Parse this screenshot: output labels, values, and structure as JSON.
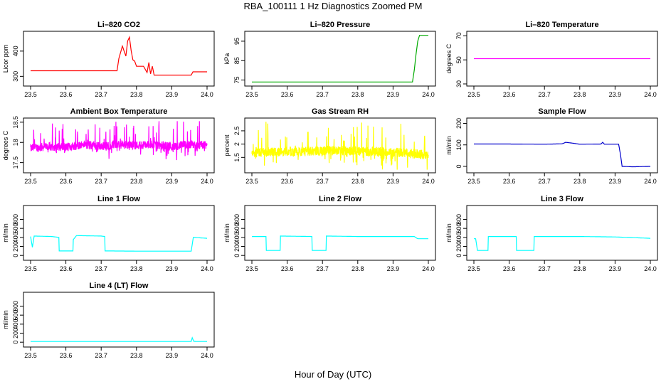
{
  "figure": {
    "title": "RBA_100111  1 Hz Diagnostics Zoomed PM",
    "xlabel": "Hour of Day (UTC)"
  },
  "chart_data": [
    {
      "type": "line",
      "title": "Li–820 CO2",
      "ylabel": "Licor ppm",
      "color": "#ff0000",
      "xlim": [
        23.5,
        24.0
      ],
      "ylim": [
        270,
        470
      ],
      "xticks": [
        "23.5",
        "23.6",
        "23.7",
        "23.8",
        "23.9",
        "24.0"
      ],
      "yticks": [
        300,
        400
      ],
      "series": [
        {
          "name": "CO2",
          "x": [
            23.5,
            23.55,
            23.6,
            23.65,
            23.7,
            23.745,
            23.75,
            23.76,
            23.77,
            23.775,
            23.78,
            23.785,
            23.79,
            23.795,
            23.8,
            23.82,
            23.83,
            23.835,
            23.84,
            23.845,
            23.85,
            23.86,
            23.9,
            23.955,
            23.96,
            23.97,
            23.99,
            24.0
          ],
          "values": [
            322,
            322,
            322,
            322,
            322,
            322,
            370,
            420,
            380,
            440,
            455,
            400,
            365,
            360,
            340,
            340,
            315,
            355,
            310,
            340,
            305,
            305,
            305,
            305,
            318,
            318,
            318,
            318
          ]
        }
      ]
    },
    {
      "type": "line",
      "title": "Li–820 Pressure",
      "ylabel": "kPa",
      "color": "#00aa00",
      "xlim": [
        23.5,
        24.0
      ],
      "ylim": [
        73,
        99
      ],
      "xticks": [
        "23.5",
        "23.6",
        "23.7",
        "23.8",
        "23.9",
        "24.0"
      ],
      "yticks": [
        75,
        85,
        95
      ],
      "series": [
        {
          "name": "Pressure",
          "x": [
            23.5,
            23.6,
            23.7,
            23.8,
            23.9,
            23.94,
            23.955,
            23.96,
            23.965,
            23.97,
            23.975,
            23.98,
            24.0
          ],
          "values": [
            74,
            74,
            74,
            74,
            74,
            74,
            74,
            80,
            88,
            95,
            98,
            98,
            98
          ]
        }
      ]
    },
    {
      "type": "line",
      "title": "Li–820 Temperature",
      "ylabel": "degrees C",
      "color": "#ff00ff",
      "xlim": [
        23.5,
        24.0
      ],
      "ylim": [
        30,
        72
      ],
      "xticks": [
        "23.5",
        "23.6",
        "23.7",
        "23.8",
        "23.9",
        "24.0"
      ],
      "yticks": [
        30,
        50,
        70
      ],
      "series": [
        {
          "name": "Temperature",
          "x": [
            23.5,
            24.0
          ],
          "values": [
            51,
            51
          ]
        }
      ]
    },
    {
      "type": "line",
      "title": "Ambient Box Temperature",
      "ylabel": "degrees C",
      "color": "#ff00ff",
      "xlim": [
        23.5,
        24.0
      ],
      "ylim": [
        17.3,
        18.55
      ],
      "xticks": [
        "23.5",
        "23.6",
        "23.7",
        "23.8",
        "23.9",
        "24.0"
      ],
      "yticks": [
        17.5,
        18.0,
        18.5
      ],
      "series": [
        {
          "name": "Ambient",
          "x": [
            23.5,
            23.55,
            23.6,
            23.65,
            23.7,
            23.75,
            23.8,
            23.85,
            23.9,
            23.95,
            24.0
          ],
          "values": [
            17.85,
            17.9,
            17.88,
            17.95,
            17.9,
            17.95,
            17.93,
            17.95,
            17.9,
            17.95,
            17.92
          ],
          "noise": 0.35
        }
      ]
    },
    {
      "type": "line",
      "title": "Gas Stream RH",
      "ylabel": "percent",
      "color": "#ffff00",
      "xlim": [
        23.5,
        24.0
      ],
      "ylim": [
        1.0,
        2.9
      ],
      "xticks": [
        "23.5",
        "23.6",
        "23.7",
        "23.8",
        "23.9",
        "24.0"
      ],
      "yticks": [
        1.5,
        2.0,
        2.5
      ],
      "series": [
        {
          "name": "RH",
          "x": [
            23.5,
            23.6,
            23.7,
            23.8,
            23.9,
            24.0
          ],
          "values": [
            1.7,
            1.7,
            1.75,
            1.75,
            1.7,
            1.6
          ],
          "noise": 0.6
        }
      ]
    },
    {
      "type": "line",
      "title": "Sample Flow",
      "ylabel": "ml/min",
      "color": "#0000cc",
      "xlim": [
        23.5,
        24.0
      ],
      "ylim": [
        -20,
        215
      ],
      "xticks": [
        "23.5",
        "23.6",
        "23.7",
        "23.8",
        "23.9",
        "24.0"
      ],
      "yticks": [
        0,
        100,
        200
      ],
      "series": [
        {
          "name": "Sample",
          "x": [
            23.5,
            23.6,
            23.7,
            23.75,
            23.76,
            23.78,
            23.8,
            23.86,
            23.865,
            23.87,
            23.91,
            23.915,
            23.92,
            23.95,
            24.0
          ],
          "values": [
            104,
            104,
            103,
            105,
            112,
            108,
            103,
            104,
            112,
            103,
            103,
            60,
            0,
            -2,
            0
          ]
        }
      ]
    },
    {
      "type": "line",
      "title": "Line 1 Flow",
      "ylabel": "ml/min",
      "color": "#00ffff",
      "xlim": [
        23.5,
        24.0
      ],
      "ylim": [
        -60,
        1060
      ],
      "xticks": [
        "23.5",
        "23.6",
        "23.7",
        "23.8",
        "23.9",
        "24.0"
      ],
      "yticks": [
        0,
        200,
        400,
        600,
        800
      ],
      "series": [
        {
          "name": "Line1",
          "x": [
            23.5,
            23.505,
            23.51,
            23.56,
            23.58,
            23.581,
            23.62,
            23.621,
            23.63,
            23.7,
            23.71,
            23.711,
            23.8,
            23.9,
            23.955,
            23.96,
            23.961,
            24.0
          ],
          "values": [
            420,
            180,
            430,
            420,
            400,
            100,
            100,
            350,
            440,
            430,
            420,
            100,
            95,
            95,
            95,
            350,
            400,
            380
          ]
        }
      ]
    },
    {
      "type": "line",
      "title": "Line 2 Flow",
      "ylabel": "ml/min",
      "color": "#00ffff",
      "xlim": [
        23.5,
        24.0
      ],
      "ylim": [
        -60,
        1060
      ],
      "xticks": [
        "23.5",
        "23.6",
        "23.7",
        "23.8",
        "23.9",
        "24.0"
      ],
      "yticks": [
        0,
        200,
        400,
        600,
        800
      ],
      "series": [
        {
          "name": "Line2",
          "x": [
            23.5,
            23.54,
            23.541,
            23.58,
            23.581,
            23.67,
            23.671,
            23.71,
            23.711,
            23.8,
            23.9,
            23.96,
            23.97,
            24.0
          ],
          "values": [
            420,
            420,
            110,
            110,
            430,
            420,
            110,
            110,
            430,
            420,
            420,
            420,
            370,
            370
          ]
        }
      ]
    },
    {
      "type": "line",
      "title": "Line 3 Flow",
      "ylabel": "ml/min",
      "color": "#00ffff",
      "xlim": [
        23.5,
        24.0
      ],
      "ylim": [
        -60,
        1060
      ],
      "xticks": [
        "23.5",
        "23.6",
        "23.7",
        "23.8",
        "23.9",
        "24.0"
      ],
      "yticks": [
        0,
        200,
        400,
        600,
        800
      ],
      "series": [
        {
          "name": "Line3",
          "x": [
            23.5,
            23.505,
            23.51,
            23.54,
            23.541,
            23.62,
            23.621,
            23.67,
            23.671,
            23.8,
            23.9,
            24.0
          ],
          "values": [
            370,
            370,
            110,
            110,
            420,
            420,
            110,
            110,
            420,
            420,
            410,
            380
          ]
        }
      ]
    },
    {
      "type": "line",
      "title": "Line 4 (LT) Flow",
      "ylabel": "ml/min",
      "color": "#00ffff",
      "xlim": [
        23.5,
        24.0
      ],
      "ylim": [
        -60,
        1060
      ],
      "xticks": [
        "23.5",
        "23.6",
        "23.7",
        "23.8",
        "23.9",
        "24.0"
      ],
      "yticks": [
        0,
        200,
        400,
        600,
        800
      ],
      "series": [
        {
          "name": "Line4",
          "x": [
            23.5,
            23.6,
            23.7,
            23.8,
            23.9,
            23.955,
            23.958,
            23.962,
            23.97,
            24.0
          ],
          "values": [
            15,
            15,
            15,
            15,
            15,
            15,
            100,
            20,
            15,
            15
          ]
        }
      ]
    }
  ]
}
